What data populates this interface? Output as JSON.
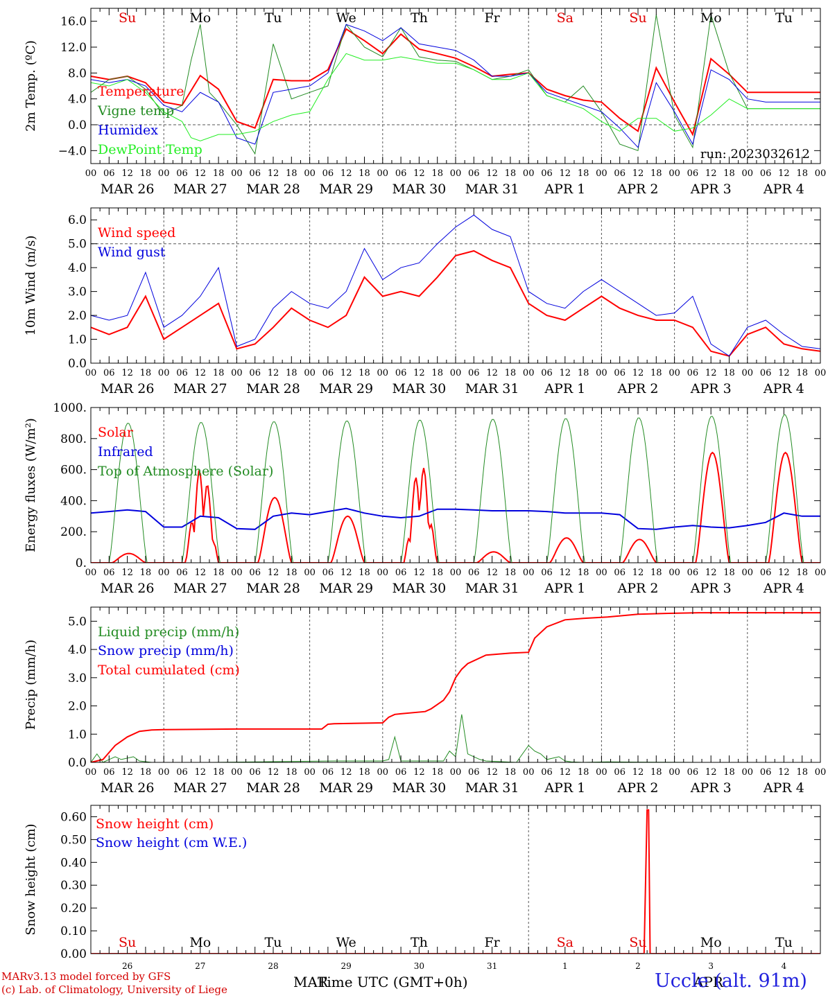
{
  "days": {
    "labels": [
      "MAR 26",
      "MAR 27",
      "MAR 28",
      "MAR 29",
      "MAR 30",
      "MAR 31",
      "APR  1",
      "APR  2",
      "APR  3",
      "APR  4"
    ],
    "weekdays": [
      "Su",
      "Mo",
      "Tu",
      "We",
      "Th",
      "Fr",
      "Sa",
      "Su",
      "Mo",
      "Tu"
    ],
    "weekday_colors": [
      "#e00000",
      "#000000",
      "#000000",
      "#000000",
      "#000000",
      "#000000",
      "#e00000",
      "#e00000",
      "#000000",
      "#000000"
    ],
    "day_numbers": [
      "26",
      "27",
      "28",
      "29",
      "30",
      "31",
      "1",
      "2",
      "3",
      "4"
    ],
    "hour_ticks": [
      "00",
      "06",
      "12",
      "18"
    ]
  },
  "footer": {
    "model": "MARv3.13 model forced by GFS",
    "copyright": "(c) Lab. of Climatology, University of Liege",
    "xlabel": "Time UTC (GMT+0h)",
    "month_left": "MAR",
    "month_right": "APR",
    "station": "Uccle (alt. 91m)"
  },
  "chart_data": [
    {
      "type": "line",
      "ylabel": "2m Temp. (ºC)",
      "ylim": [
        -6,
        18
      ],
      "yticks": [
        -4,
        0,
        4,
        8,
        12,
        16
      ],
      "ytick_labels": [
        "−4.0",
        "0.0",
        "4.0",
        "8.0",
        "12.0",
        "16.0"
      ],
      "dashed_y": 0,
      "legend_placement": "left",
      "run_label": "run: 2023032612",
      "x_unit": "hours since 2023-03-26 00 UTC",
      "series": [
        {
          "name": "Temperature",
          "color": "#ff0000",
          "width": 2,
          "x": [
            0,
            6,
            12,
            18,
            24,
            30,
            36,
            42,
            48,
            54,
            60,
            66,
            72,
            78,
            84,
            90,
            96,
            102,
            108,
            114,
            120,
            126,
            132,
            138,
            144,
            150,
            156,
            162,
            168,
            174,
            180,
            186,
            192,
            198,
            204,
            210,
            216,
            222,
            228,
            234,
            240
          ],
          "y": [
            7.5,
            7.0,
            7.5,
            6.5,
            3.5,
            3.0,
            7.6,
            5.5,
            0.5,
            -0.5,
            7.0,
            6.8,
            6.8,
            8.5,
            14.8,
            13.0,
            11.0,
            14.0,
            11.7,
            11.0,
            10.3,
            9.0,
            7.5,
            7.8,
            8.0,
            5.5,
            4.5,
            3.8,
            3.5,
            1.0,
            -1.0,
            8.8,
            3.5,
            -1.5,
            10.2,
            7.8,
            5.0,
            5.0,
            5.0,
            5.0,
            5.0
          ]
        },
        {
          "name": "Vigne temp",
          "color": "#228b22",
          "width": 1,
          "x": [
            0,
            6,
            12,
            18,
            24,
            30,
            33,
            36,
            39,
            42,
            48,
            54,
            60,
            66,
            72,
            78,
            84,
            90,
            96,
            102,
            108,
            114,
            120,
            126,
            132,
            138,
            144,
            150,
            156,
            162,
            168,
            174,
            180,
            186,
            192,
            198,
            204,
            210,
            216,
            222,
            228,
            234,
            240
          ],
          "y": [
            5.0,
            7.0,
            7.5,
            5.5,
            1.5,
            3.0,
            10.0,
            15.5,
            5.0,
            3.5,
            0.0,
            -4.5,
            12.5,
            4.0,
            5.0,
            6.0,
            15.5,
            12.0,
            10.5,
            15.0,
            10.5,
            10.0,
            9.8,
            8.5,
            7.0,
            7.5,
            8.5,
            4.5,
            3.5,
            6.0,
            2.0,
            -3.0,
            -4.0,
            17.0,
            1.5,
            -3.5,
            17.0,
            8.0,
            2.5,
            2.5,
            2.5,
            2.5,
            2.5
          ]
        },
        {
          "name": "Humidex",
          "color": "#0000dd",
          "width": 1,
          "x": [
            0,
            6,
            12,
            18,
            24,
            30,
            36,
            42,
            48,
            54,
            60,
            66,
            72,
            78,
            84,
            90,
            96,
            102,
            108,
            114,
            120,
            126,
            132,
            138,
            144,
            150,
            156,
            162,
            168,
            174,
            180,
            186,
            192,
            198,
            204,
            210,
            216,
            222,
            228,
            234,
            240
          ],
          "y": [
            7.0,
            6.5,
            7.0,
            6.0,
            3.0,
            2.0,
            5.0,
            3.5,
            -2.0,
            -3.0,
            5.0,
            5.5,
            6.0,
            8.0,
            15.5,
            14.5,
            13.0,
            15.0,
            12.5,
            12.0,
            11.5,
            10.0,
            7.5,
            7.5,
            8.0,
            5.0,
            4.0,
            3.0,
            2.0,
            -0.5,
            -3.5,
            6.5,
            2.0,
            -3.0,
            8.5,
            7.0,
            4.0,
            3.5,
            3.5,
            3.5,
            3.5
          ]
        },
        {
          "name": "DewPoint Temp",
          "color": "#22ee22",
          "width": 1,
          "x": [
            0,
            6,
            12,
            18,
            24,
            30,
            33,
            36,
            42,
            48,
            54,
            60,
            66,
            72,
            78,
            84,
            90,
            96,
            102,
            108,
            114,
            120,
            126,
            132,
            138,
            144,
            150,
            156,
            162,
            168,
            174,
            180,
            186,
            192,
            198,
            204,
            210,
            216,
            222,
            228,
            234,
            240
          ],
          "y": [
            6.5,
            6.0,
            7.0,
            5.0,
            2.0,
            0.5,
            -2.0,
            -2.5,
            -1.5,
            -1.5,
            -1.0,
            0.5,
            1.5,
            2.0,
            7.0,
            11.0,
            10.0,
            10.0,
            10.5,
            10.0,
            9.5,
            9.5,
            8.5,
            7.0,
            7.0,
            8.0,
            4.5,
            3.5,
            2.5,
            0.5,
            -1.0,
            1.0,
            1.0,
            -1.0,
            -0.5,
            1.5,
            4.0,
            2.5,
            2.5,
            2.5,
            2.5,
            2.5
          ]
        }
      ]
    },
    {
      "type": "line",
      "ylabel": "10m Wind (m/s)",
      "ylim": [
        0,
        6.5
      ],
      "yticks": [
        0,
        1,
        2,
        3,
        4,
        5,
        6
      ],
      "ytick_labels": [
        "0.0",
        "1.0",
        "2.0",
        "3.0",
        "4.0",
        "5.0",
        "6.0"
      ],
      "dashed_y": 5,
      "legend_placement": "top-left",
      "x_unit": "hours since 2023-03-26 00 UTC",
      "series": [
        {
          "name": "Wind speed",
          "color": "#ff0000",
          "width": 2,
          "x": [
            0,
            6,
            12,
            18,
            24,
            30,
            36,
            42,
            48,
            54,
            60,
            66,
            72,
            78,
            84,
            90,
            96,
            102,
            108,
            114,
            120,
            126,
            132,
            138,
            144,
            150,
            156,
            162,
            168,
            174,
            180,
            186,
            192,
            198,
            204,
            210,
            216,
            222,
            228,
            234,
            240
          ],
          "y": [
            1.5,
            1.2,
            1.5,
            2.8,
            1.0,
            1.5,
            2.0,
            2.5,
            0.6,
            0.8,
            1.5,
            2.3,
            1.8,
            1.5,
            2.0,
            3.6,
            2.8,
            3.0,
            2.8,
            3.6,
            4.5,
            4.7,
            4.3,
            4.0,
            2.5,
            2.0,
            1.8,
            2.3,
            2.8,
            2.3,
            2.0,
            1.8,
            1.8,
            1.5,
            0.5,
            0.3,
            1.2,
            1.5,
            0.8,
            0.6,
            0.5
          ]
        },
        {
          "name": "Wind gust",
          "color": "#0000dd",
          "width": 1,
          "x": [
            0,
            6,
            12,
            18,
            24,
            30,
            36,
            42,
            48,
            54,
            60,
            66,
            72,
            78,
            84,
            90,
            96,
            102,
            108,
            114,
            120,
            126,
            132,
            138,
            144,
            150,
            156,
            162,
            168,
            174,
            180,
            186,
            192,
            198,
            204,
            210,
            216,
            222,
            228,
            234,
            240
          ],
          "y": [
            2.0,
            1.8,
            2.0,
            3.8,
            1.5,
            2.0,
            2.8,
            4.0,
            0.7,
            1.0,
            2.3,
            3.0,
            2.5,
            2.3,
            3.0,
            4.8,
            3.5,
            4.0,
            4.2,
            5.0,
            5.7,
            6.2,
            5.6,
            5.3,
            3.0,
            2.5,
            2.3,
            3.0,
            3.5,
            3.0,
            2.5,
            2.0,
            2.1,
            2.8,
            0.8,
            0.3,
            1.5,
            1.8,
            1.2,
            0.7,
            0.6
          ]
        }
      ]
    },
    {
      "type": "line",
      "ylabel": "Energy fluxes (W/m²)",
      "ylim": [
        0,
        1000
      ],
      "yticks": [
        0,
        200,
        400,
        600,
        800,
        1000
      ],
      "ytick_labels": [
        "0.",
        "200.",
        "400.",
        "600.",
        "800.",
        "1000."
      ],
      "legend_placement": "top-left",
      "x_unit": "hours since 2023-03-26 00 UTC",
      "series": [
        {
          "name": "Solar",
          "color": "#ff0000",
          "width": 2,
          "daily_peaks": [
            60,
            620,
            420,
            300,
            650,
            70,
            160,
            150,
            710,
            710
          ]
        },
        {
          "name": "Infrared",
          "color": "#0000dd",
          "width": 2,
          "x": [
            0,
            6,
            12,
            18,
            24,
            30,
            36,
            42,
            48,
            54,
            60,
            66,
            72,
            78,
            84,
            90,
            96,
            102,
            108,
            114,
            120,
            126,
            132,
            138,
            144,
            150,
            156,
            162,
            168,
            174,
            180,
            186,
            192,
            198,
            204,
            210,
            216,
            222,
            228,
            234,
            240
          ],
          "y": [
            320,
            330,
            340,
            330,
            230,
            230,
            300,
            290,
            220,
            215,
            300,
            320,
            310,
            330,
            350,
            320,
            300,
            290,
            300,
            345,
            345,
            340,
            335,
            335,
            335,
            330,
            320,
            320,
            320,
            310,
            220,
            215,
            230,
            240,
            230,
            225,
            240,
            260,
            320,
            300,
            300
          ]
        },
        {
          "name": "Top of Atmosphere (Solar)",
          "color": "#228b22",
          "width": 1,
          "daily_peaks": [
            900,
            905,
            910,
            915,
            920,
            925,
            930,
            935,
            945,
            955
          ]
        }
      ]
    },
    {
      "type": "line",
      "ylabel": "Precip (mm/h)",
      "ylim": [
        0,
        5.5
      ],
      "yticks": [
        0,
        1,
        2,
        3,
        4,
        5
      ],
      "ytick_labels": [
        "0.0",
        "1.0",
        "2.0",
        "3.0",
        "4.0",
        "5.0"
      ],
      "legend_placement": "top-left",
      "x_unit": "hours since 2023-03-26 00 UTC",
      "series": [
        {
          "name": "Liquid precip (mm/h)",
          "color": "#228b22",
          "width": 1,
          "x": [
            0,
            2,
            4,
            6,
            8,
            10,
            14,
            16,
            20,
            40,
            80,
            96,
            98,
            100,
            102,
            116,
            118,
            120,
            122,
            124,
            126,
            128,
            130,
            140,
            144,
            146,
            148,
            150,
            154,
            156,
            158,
            160,
            162,
            170,
            180,
            200,
            240
          ],
          "y": [
            0,
            0.3,
            0,
            0.1,
            0.2,
            0.1,
            0.2,
            0.05,
            0,
            0,
            0.05,
            0.05,
            0.1,
            0.9,
            0.05,
            0.05,
            0.4,
            0.2,
            1.7,
            0.3,
            0.2,
            0.1,
            0.05,
            0,
            0.6,
            0.4,
            0.3,
            0.1,
            0.2,
            0.05,
            0.02,
            0.01,
            0,
            0.02,
            0.01,
            0,
            0
          ]
        },
        {
          "name": "Snow precip (mm/h)",
          "color": "#0000dd",
          "width": 1,
          "x": [
            0,
            240
          ],
          "y": [
            0,
            0
          ]
        },
        {
          "name": "Total cumulated (cm)",
          "color": "#ff0000",
          "width": 2,
          "x": [
            0,
            4,
            8,
            12,
            16,
            20,
            24,
            48,
            76,
            78,
            80,
            96,
            98,
            100,
            102,
            110,
            112,
            116,
            118,
            120,
            122,
            124,
            130,
            138,
            144,
            146,
            150,
            156,
            162,
            170,
            180,
            190,
            200,
            240
          ],
          "y": [
            0,
            0.1,
            0.6,
            0.9,
            1.1,
            1.15,
            1.16,
            1.18,
            1.18,
            1.35,
            1.37,
            1.4,
            1.6,
            1.7,
            1.72,
            1.8,
            1.9,
            2.2,
            2.5,
            3.0,
            3.3,
            3.5,
            3.8,
            3.87,
            3.9,
            4.4,
            4.8,
            5.05,
            5.1,
            5.15,
            5.25,
            5.28,
            5.3,
            5.3
          ]
        }
      ]
    },
    {
      "type": "line",
      "ylabel": "Snow height (cm)",
      "ylim": [
        0,
        0.65
      ],
      "yticks": [
        0,
        0.1,
        0.2,
        0.3,
        0.4,
        0.5,
        0.6
      ],
      "ytick_labels": [
        "0.00",
        "0.10",
        "0.20",
        "0.30",
        "0.40",
        "0.50",
        "0.60"
      ],
      "legend_placement": "top-left",
      "x_unit": "hours since 2023-03-26 00 UTC",
      "series": [
        {
          "name": "Snow height (cm)",
          "color": "#ff0000",
          "width": 2,
          "x": [
            0,
            182,
            183,
            183.5,
            184,
            240
          ],
          "y": [
            0,
            0,
            0.63,
            0.63,
            0,
            0
          ]
        },
        {
          "name": "Snow height (cm W.E.)",
          "color": "#0000dd",
          "width": 1,
          "x": [
            0,
            240
          ],
          "y": [
            0,
            0
          ]
        }
      ]
    }
  ]
}
